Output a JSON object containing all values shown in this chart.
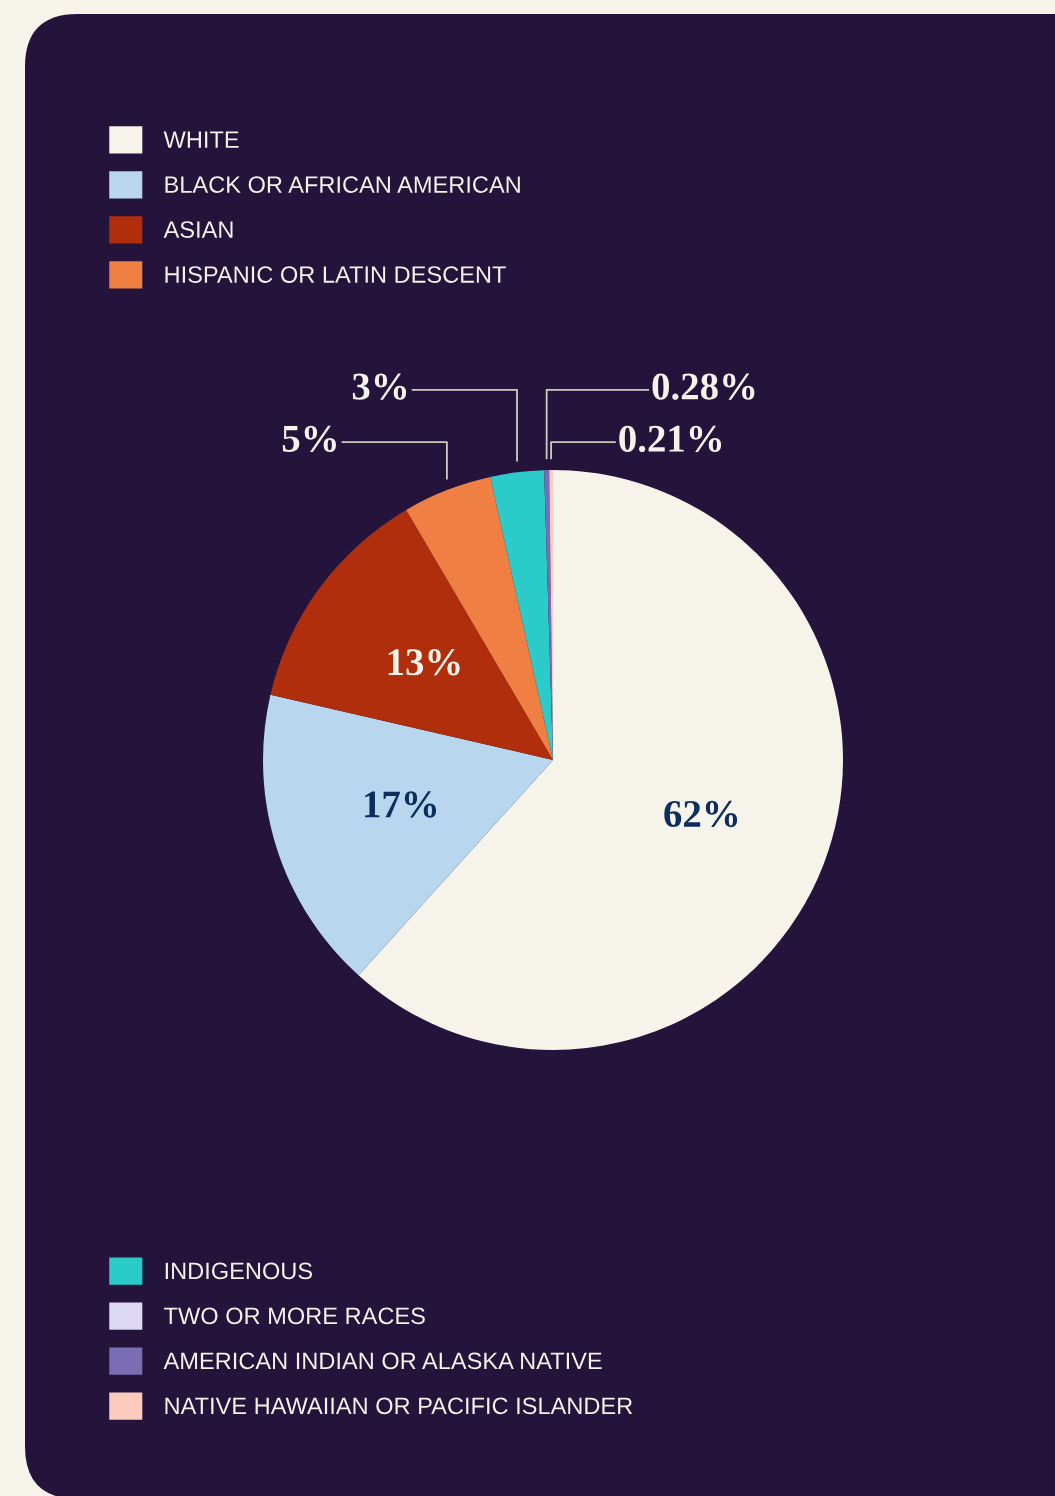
{
  "chart_data": {
    "type": "pie",
    "categories": [
      "WHITE",
      "BLACK OR AFRICAN AMERICAN",
      "ASIAN",
      "HISPANIC OR LATIN DESCENT",
      "INDIGENOUS",
      "TWO OR MORE RACES",
      "AMERICAN INDIAN OR ALASKA NATIVE",
      "NATIVE HAWAIIAN OR PACIFIC ISLANDER"
    ],
    "values": [
      62,
      17,
      13,
      5,
      3,
      null,
      0.28,
      0.21
    ],
    "colors": [
      "#f6f3ea",
      "#b8d6ee",
      "#b02e0c",
      "#ef7f43",
      "#2bcbc9",
      "#dcd7f3",
      "#7b6db3",
      "#fdcbbd"
    ],
    "value_labels": [
      "62%",
      "17%",
      "13%",
      "5%",
      "3%",
      null,
      "0.28%",
      "0.21%"
    ],
    "legend": "left"
  }
}
